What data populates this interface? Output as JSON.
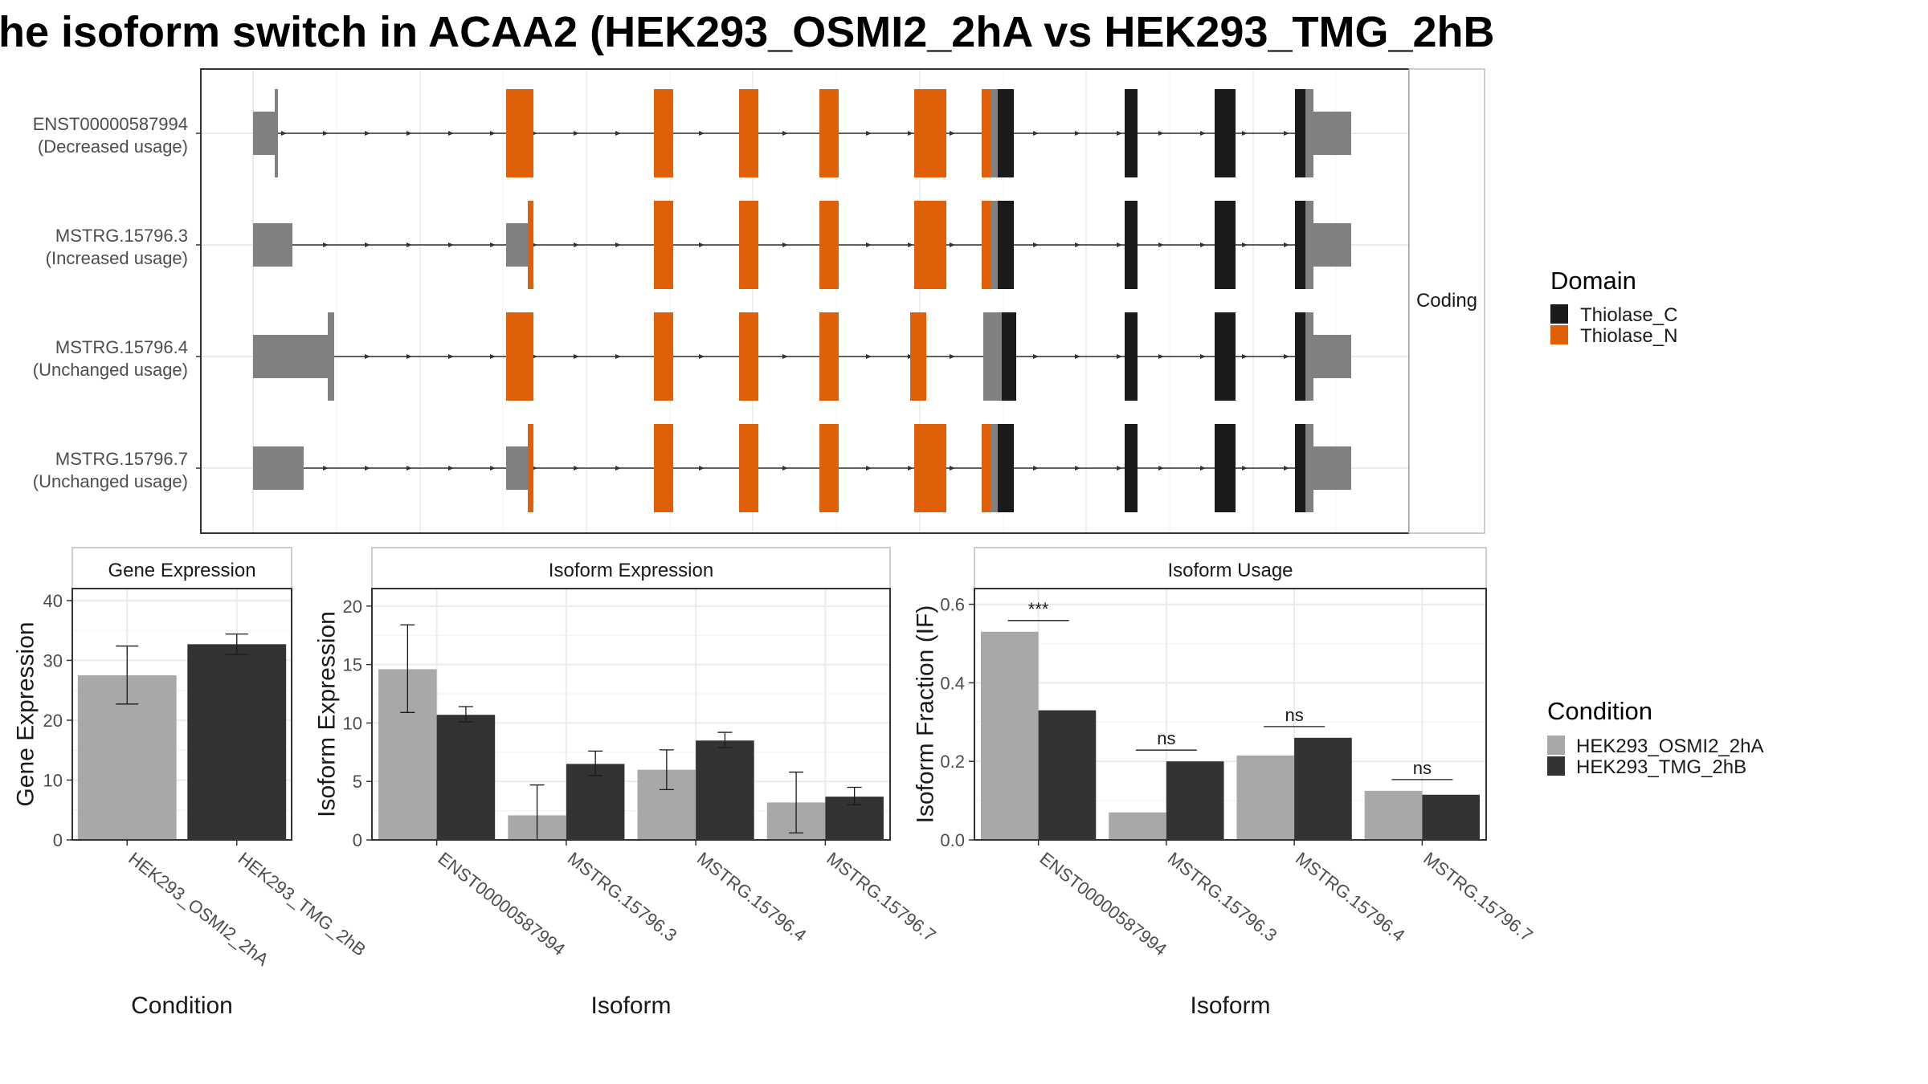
{
  "title": "he isoform switch in ACAA2 (HEK293_OSMI2_2hA vs HEK293_TMG_2hB",
  "colors": {
    "thiolase_c": "#1a1a1a",
    "thiolase_n": "#e0600a",
    "utr_gray": "#808080",
    "cond_a": "#a8a8a8",
    "cond_b": "#333333",
    "strip_bg": "#ffffff",
    "grid": "#ebebeb"
  },
  "structure_panel": {
    "strip_label": "Coding",
    "transcripts": [
      {
        "id": "ENST00000587994",
        "note": "(Decreased usage)"
      },
      {
        "id": "MSTRG.15796.3",
        "note": "(Increased usage)"
      },
      {
        "id": "MSTRG.15796.4",
        "note": "(Unchanged usage)"
      },
      {
        "id": "MSTRG.15796.7",
        "note": "(Unchanged usage)"
      }
    ]
  },
  "domain_legend": {
    "title": "Domain",
    "items": [
      {
        "label": "Thiolase_C",
        "color": "#1a1a1a"
      },
      {
        "label": "Thiolase_N",
        "color": "#e0600a"
      }
    ]
  },
  "condition_legend": {
    "title": "Condition",
    "items": [
      {
        "label": "HEK293_OSMI2_2hA",
        "color": "#a8a8a8"
      },
      {
        "label": "HEK293_TMG_2hB",
        "color": "#333333"
      }
    ]
  },
  "chart_data": [
    {
      "type": "bar",
      "strip": "Gene Expression",
      "ylabel": "Gene Expression",
      "xlabel": "Condition",
      "ylim": [
        0,
        42
      ],
      "yticks": [
        0,
        10,
        20,
        30,
        40
      ],
      "categories": [
        "HEK293_OSMI2_2hA",
        "HEK293_TMG_2hB"
      ],
      "values": [
        27.5,
        32.7
      ],
      "err_low": [
        22.7,
        31.0
      ],
      "err_high": [
        32.4,
        34.4
      ],
      "colors": [
        "#a8a8a8",
        "#333333"
      ]
    },
    {
      "type": "bar",
      "strip": "Isoform Expression",
      "ylabel": "Isoform Expression",
      "xlabel": "Isoform",
      "ylim": [
        0,
        21.5
      ],
      "yticks": [
        0,
        5,
        10,
        15,
        20
      ],
      "categories": [
        "ENST00000587994",
        "MSTRG.15796.3",
        "MSTRG.15796.4",
        "MSTRG.15796.7"
      ],
      "series": [
        {
          "name": "HEK293_OSMI2_2hA",
          "values": [
            14.6,
            2.1,
            6.0,
            3.2
          ],
          "err_low": [
            10.9,
            0.0,
            4.3,
            0.6
          ],
          "err_high": [
            18.4,
            4.7,
            7.7,
            5.8
          ]
        },
        {
          "name": "HEK293_TMG_2hB",
          "values": [
            10.7,
            6.5,
            8.5,
            3.7
          ],
          "err_low": [
            10.1,
            5.5,
            7.9,
            3.0
          ],
          "err_high": [
            11.4,
            7.6,
            9.2,
            4.5
          ]
        }
      ]
    },
    {
      "type": "bar",
      "strip": "Isoform Usage",
      "ylabel": "Isoform Fraction (IF)",
      "xlabel": "Isoform",
      "ylim": [
        0,
        0.64
      ],
      "yticks": [
        0.0,
        0.2,
        0.4,
        0.6
      ],
      "ytick_labels": [
        "0.0",
        "0.2",
        "0.4",
        "0.6"
      ],
      "categories": [
        "ENST00000587994",
        "MSTRG.15796.3",
        "MSTRG.15796.4",
        "MSTRG.15796.7"
      ],
      "series": [
        {
          "name": "HEK293_OSMI2_2hA",
          "values": [
            0.53,
            0.07,
            0.215,
            0.125
          ]
        },
        {
          "name": "HEK293_TMG_2hB",
          "values": [
            0.33,
            0.2,
            0.26,
            0.115
          ]
        }
      ],
      "significance": [
        "***",
        "ns",
        "ns",
        "ns"
      ]
    }
  ]
}
